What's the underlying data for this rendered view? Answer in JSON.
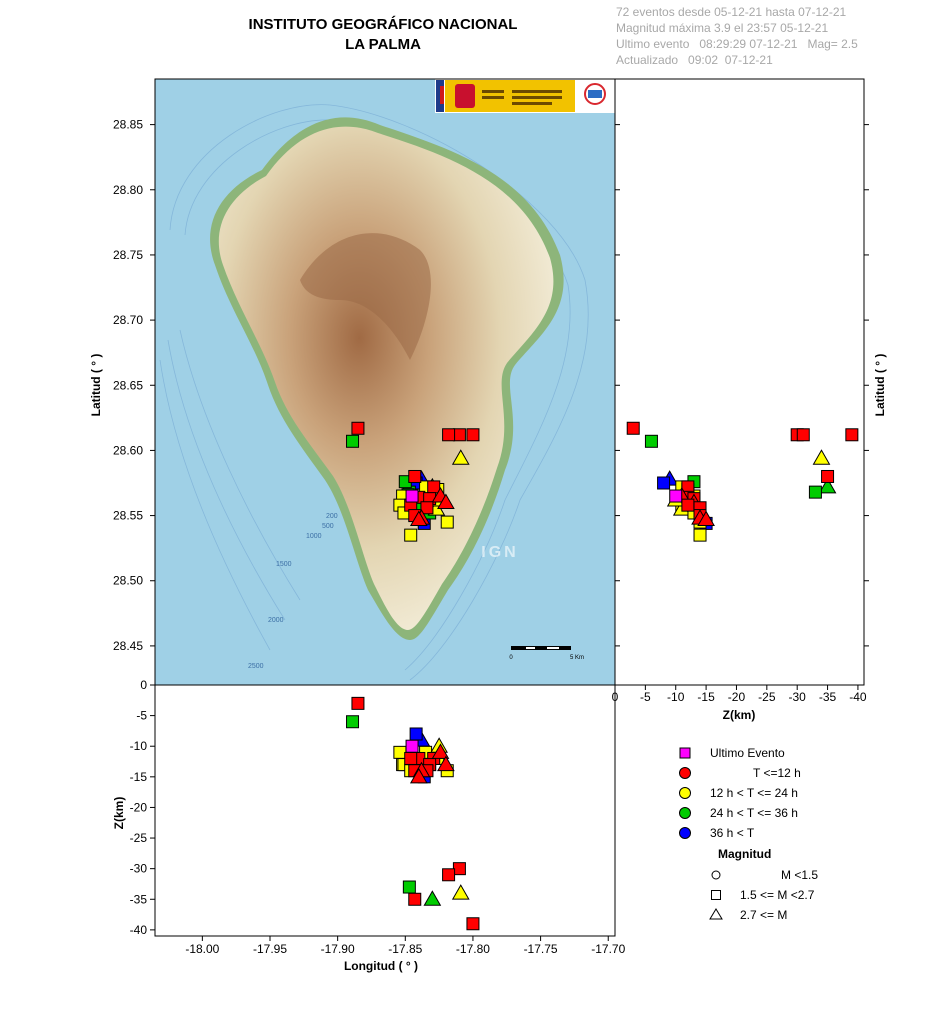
{
  "header": {
    "title_line1": "INSTITUTO GEOGRÁFICO NACIONAL",
    "title_line2": "LA PALMA",
    "info": [
      "72 eventos desde 05-12-21 hasta 07-12-21",
      "Magnitud máxima 3.9 el 23:57 05-12-21",
      "Ultimo evento   08:29:29 07-12-21   Mag= 2.5",
      "Actualizado   09:02  07-12-21"
    ]
  },
  "map": {
    "watermark": "IGN",
    "scale_start": "0",
    "scale_end": "5 Km",
    "depth_contours": [
      "200",
      "500",
      "1000",
      "1500",
      "2000",
      "2500"
    ]
  },
  "colors": {
    "ultimo": "#ff00ff",
    "lt12": "#ff0000",
    "12_24": "#ffff00",
    "24_36": "#00cc00",
    "gt36": "#0000ff",
    "sea": "#9fd0e6",
    "land": "#d8c8a2"
  },
  "legend": {
    "items": [
      {
        "key": "ultimo",
        "label": "Ultimo Evento"
      },
      {
        "key": "lt12",
        "label": "T <=12 h"
      },
      {
        "key": "12_24",
        "label": "12 h  < T <= 24 h"
      },
      {
        "key": "24_36",
        "label": "24 h  < T <= 36 h"
      },
      {
        "key": "gt36",
        "label": "36 h <  T"
      }
    ],
    "magnitude_title": "Magnitud",
    "magnitude_items": [
      {
        "shape": "circle",
        "label": "M <1.5"
      },
      {
        "shape": "square",
        "label": "1.5 <= M <2.7"
      },
      {
        "shape": "triangle",
        "label": "2.7 <= M"
      }
    ]
  },
  "chart_data": [
    {
      "type": "scatter",
      "name": "map_view",
      "xlabel": "",
      "ylabel": "Latitud ( ° )",
      "xlim": [
        -18.035,
        -17.695
      ],
      "ylim": [
        28.42,
        28.885
      ],
      "y_ticks": [
        28.45,
        28.5,
        28.55,
        28.6,
        28.65,
        28.7,
        28.75,
        28.8,
        28.85
      ],
      "y_tick_labels": [
        "28.45",
        "28.50",
        "28.55",
        "28.60",
        "28.65",
        "28.70",
        "28.75",
        "28.80",
        "28.85"
      ],
      "note": "points share the events list below (lon, lat)"
    },
    {
      "type": "scatter",
      "name": "depth_vs_latitude",
      "xlabel": "Z(km)",
      "ylabel": "Latitud ( ° )",
      "xlim": [
        0,
        -41
      ],
      "ylim": [
        28.42,
        28.885
      ],
      "x_ticks": [
        0,
        -5,
        -10,
        -15,
        -20,
        -25,
        -30,
        -35,
        -40
      ],
      "x_tick_labels": [
        "0",
        "-5",
        "-10",
        "-15",
        "-20",
        "-25",
        "-30",
        "-35",
        "-40"
      ]
    },
    {
      "type": "scatter",
      "name": "longitude_vs_depth",
      "xlabel": "Longitud ( ° )",
      "ylabel": "Z(km)",
      "xlim": [
        -18.035,
        -17.695
      ],
      "ylim": [
        -41,
        0
      ],
      "x_ticks": [
        -18.0,
        -17.95,
        -17.9,
        -17.85,
        -17.8,
        -17.75,
        -17.7
      ],
      "x_tick_labels": [
        "-18.00",
        "-17.95",
        "-17.90",
        "-17.85",
        "-17.80",
        "-17.75",
        "-17.70"
      ],
      "y_ticks": [
        0,
        -5,
        -10,
        -15,
        -20,
        -25,
        -30,
        -35,
        -40
      ],
      "y_tick_labels": [
        "0",
        "-5",
        "-10",
        "-15",
        "-20",
        "-25",
        "-30",
        "-35",
        "-40"
      ]
    }
  ],
  "events": [
    {
      "lon": -17.885,
      "lat": 28.617,
      "z": -3,
      "shape": "square",
      "color": "lt12"
    },
    {
      "lon": -17.889,
      "lat": 28.607,
      "z": -6,
      "shape": "square",
      "color": "24_36"
    },
    {
      "lon": -17.81,
      "lat": 28.612,
      "z": -30,
      "shape": "square",
      "color": "lt12"
    },
    {
      "lon": -17.818,
      "lat": 28.612,
      "z": -31,
      "shape": "square",
      "color": "lt12"
    },
    {
      "lon": -17.8,
      "lat": 28.612,
      "z": -39,
      "shape": "square",
      "color": "lt12"
    },
    {
      "lon": -17.809,
      "lat": 28.594,
      "z": -34,
      "shape": "triangle",
      "color": "12_24"
    },
    {
      "lon": -17.843,
      "lat": 28.58,
      "z": -35,
      "shape": "square",
      "color": "lt12"
    },
    {
      "lon": -17.83,
      "lat": 28.572,
      "z": -35,
      "shape": "triangle",
      "color": "24_36"
    },
    {
      "lon": -17.847,
      "lat": 28.568,
      "z": -33,
      "shape": "square",
      "color": "24_36"
    },
    {
      "lon": -17.838,
      "lat": 28.578,
      "z": -9,
      "shape": "triangle",
      "color": "gt36"
    },
    {
      "lon": -17.842,
      "lat": 28.575,
      "z": -8,
      "shape": "square",
      "color": "gt36"
    },
    {
      "lon": -17.85,
      "lat": 28.576,
      "z": -13,
      "shape": "square",
      "color": "24_36"
    },
    {
      "lon": -17.845,
      "lat": 28.565,
      "z": -10,
      "shape": "square",
      "color": "ultimo"
    },
    {
      "lon": -17.829,
      "lat": 28.572,
      "z": -12,
      "shape": "square",
      "color": "lt12"
    },
    {
      "lon": -17.835,
      "lat": 28.572,
      "z": -11,
      "shape": "square",
      "color": "12_24"
    },
    {
      "lon": -17.826,
      "lat": 28.57,
      "z": -12,
      "shape": "square",
      "color": "12_24"
    },
    {
      "lon": -17.848,
      "lat": 28.566,
      "z": -12,
      "shape": "square",
      "color": "24_36"
    },
    {
      "lon": -17.852,
      "lat": 28.565,
      "z": -13,
      "shape": "square",
      "color": "12_24"
    },
    {
      "lon": -17.84,
      "lat": 28.564,
      "z": -12,
      "shape": "square",
      "color": "lt12"
    },
    {
      "lon": -17.832,
      "lat": 28.563,
      "z": -13,
      "shape": "square",
      "color": "lt12"
    },
    {
      "lon": -17.824,
      "lat": 28.565,
      "z": -11,
      "shape": "triangle",
      "color": "lt12"
    },
    {
      "lon": -17.82,
      "lat": 28.56,
      "z": -13,
      "shape": "triangle",
      "color": "lt12"
    },
    {
      "lon": -17.854,
      "lat": 28.558,
      "z": -11,
      "shape": "square",
      "color": "12_24"
    },
    {
      "lon": -17.846,
      "lat": 28.558,
      "z": -12,
      "shape": "square",
      "color": "lt12"
    },
    {
      "lon": -17.839,
      "lat": 28.557,
      "z": -13,
      "shape": "square",
      "color": "24_36"
    },
    {
      "lon": -17.834,
      "lat": 28.556,
      "z": -14,
      "shape": "square",
      "color": "lt12"
    },
    {
      "lon": -17.83,
      "lat": 28.558,
      "z": -12,
      "shape": "square",
      "color": "gt36"
    },
    {
      "lon": -17.827,
      "lat": 28.555,
      "z": -11,
      "shape": "triangle",
      "color": "12_24"
    },
    {
      "lon": -17.851,
      "lat": 28.552,
      "z": -13,
      "shape": "square",
      "color": "12_24"
    },
    {
      "lon": -17.843,
      "lat": 28.55,
      "z": -14,
      "shape": "square",
      "color": "lt12"
    },
    {
      "lon": -17.838,
      "lat": 28.548,
      "z": -14,
      "shape": "triangle",
      "color": "lt12"
    },
    {
      "lon": -17.836,
      "lat": 28.544,
      "z": -15,
      "shape": "square",
      "color": "gt36"
    },
    {
      "lon": -17.832,
      "lat": 28.552,
      "z": -13,
      "shape": "square",
      "color": "24_36"
    },
    {
      "lon": -17.819,
      "lat": 28.545,
      "z": -14,
      "shape": "square",
      "color": "12_24"
    },
    {
      "lon": -17.846,
      "lat": 28.535,
      "z": -14,
      "shape": "square",
      "color": "12_24"
    },
    {
      "lon": -17.84,
      "lat": 28.547,
      "z": -15,
      "shape": "triangle",
      "color": "lt12"
    },
    {
      "lon": -17.825,
      "lat": 28.562,
      "z": -10,
      "shape": "triangle",
      "color": "12_24"
    }
  ]
}
